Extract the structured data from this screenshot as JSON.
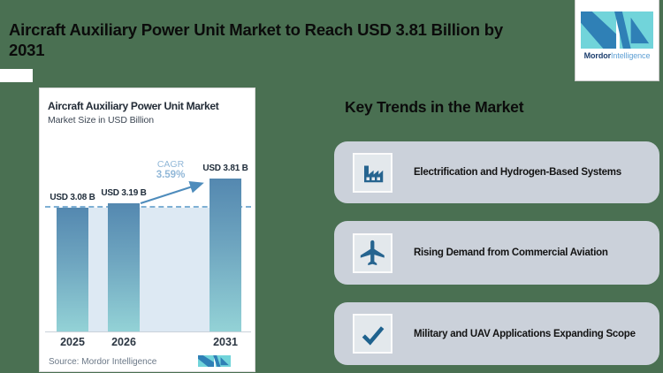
{
  "page": {
    "background_color": "#4A7052",
    "title_lines": [
      "Aircraft Auxiliary Power Unit Market to Reach USD 3.81 Billion by",
      "2031"
    ]
  },
  "brand": {
    "name_bold": "Mordor",
    "name_light": "Intelligence",
    "colors": {
      "teal": "#71D4DA",
      "blue": "#2F80B6",
      "navy": "#1C3E6E",
      "light_blue": "#5FA0D4"
    }
  },
  "chart_card": {
    "title": "Aircraft Auxiliary Power Unit Market",
    "subtitle": "Market Size in USD Billion",
    "source": "Source: Mordor Intelligence"
  },
  "chart_data": {
    "type": "bar",
    "title": "Aircraft Auxiliary Power Unit Market",
    "subtitle": "Market Size in USD Billion",
    "categories": [
      "2025",
      "2026",
      "2031"
    ],
    "values": [
      3.08,
      3.19,
      3.81
    ],
    "bar_labels": [
      "USD 3.08 B",
      "USD 3.19 B",
      "USD 3.81 B"
    ],
    "cagr_label": "CAGR",
    "cagr_value": "3.59%",
    "ylim": [
      0,
      4.2
    ],
    "grid": "single dashed reference line at first bar value",
    "legend": "none",
    "bar_gradient": [
      "#5488B0",
      "#93D2D6"
    ],
    "accent_color": "#4E8CBC",
    "source": "Source: Mordor Intelligence"
  },
  "key_trends": {
    "heading": "Key Trends in the Market",
    "items": [
      {
        "icon": "factory-icon",
        "label": "Electrification and Hydrogen-Based Systems"
      },
      {
        "icon": "plane-icon",
        "label": "Rising Demand from Commercial Aviation"
      },
      {
        "icon": "check-icon",
        "label": "Military and UAV Applications Expanding Scope"
      }
    ]
  }
}
